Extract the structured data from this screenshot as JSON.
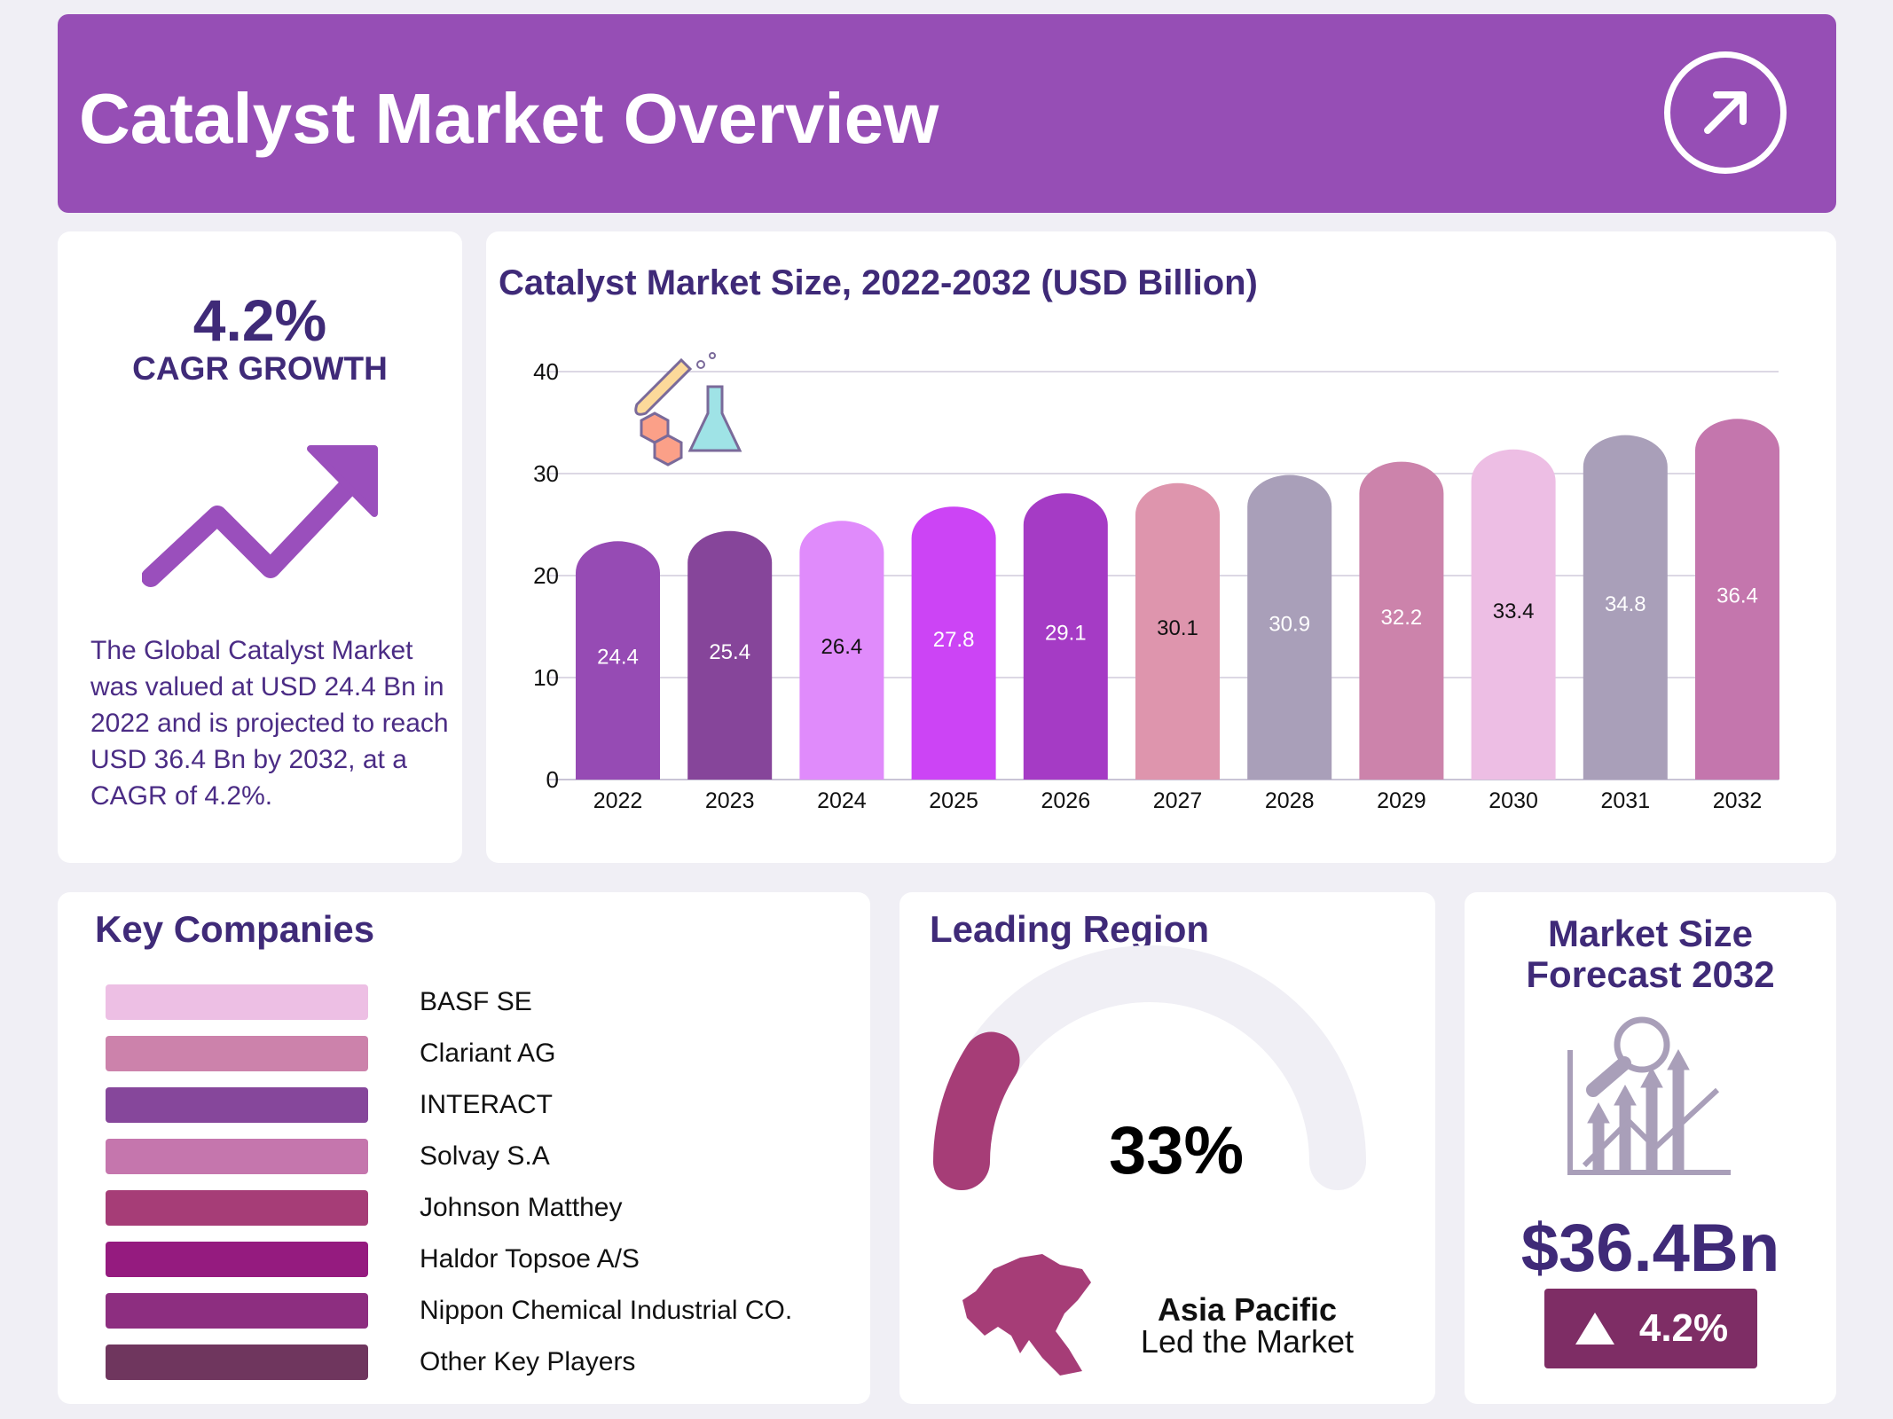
{
  "header": {
    "title": "Catalyst Market Overview",
    "icon": "arrow-up-right-circle-icon"
  },
  "cagr": {
    "value": "4.2%",
    "label": "CAGR GROWTH",
    "icon": "trend-up-arrow-icon",
    "description": "The Global Catalyst Market was valued at USD 24.4 Bn in 2022 and is projected to reach USD 36.4 Bn by 2032, at a CAGR of 4.2%."
  },
  "chart_data": {
    "type": "bar",
    "title": "Catalyst Market Size, 2022-2032 (USD Billion)",
    "xlabel": "",
    "ylabel": "",
    "ylim": [
      0,
      40
    ],
    "yticks": [
      0,
      10,
      20,
      30,
      40
    ],
    "grid": true,
    "categories": [
      "2022",
      "2023",
      "2024",
      "2025",
      "2026",
      "2027",
      "2028",
      "2029",
      "2030",
      "2031",
      "2032"
    ],
    "values": [
      24.4,
      25.4,
      26.4,
      27.8,
      29.1,
      30.1,
      30.9,
      32.2,
      33.4,
      34.8,
      36.4
    ],
    "colors": [
      "#964BB4",
      "#86459A",
      "#E08BFB",
      "#CC44F5",
      "#A53BC5",
      "#DE95AD",
      "#A99FB9",
      "#CC83AB",
      "#EDBEE4",
      "#A99FB9",
      "#C476AD"
    ],
    "label_colors": [
      "#fff",
      "#fff",
      "#111",
      "#fff",
      "#fff",
      "#111",
      "#fff",
      "#fff",
      "#111",
      "#fff",
      "#fff"
    ]
  },
  "companies": {
    "title": "Key Companies",
    "items": [
      {
        "name": "BASF SE",
        "color": "#EDBFE4"
      },
      {
        "name": "Clariant AG",
        "color": "#CC82AB"
      },
      {
        "name": "INTERACT",
        "color": "#86479B"
      },
      {
        "name": "Solvay S.A",
        "color": "#C576AD"
      },
      {
        "name": "Johnson Matthey",
        "color": "#A63D77"
      },
      {
        "name": "Haldor Topsoe A/S",
        "color": "#951B7F"
      },
      {
        "name": "Nippon Chemical Industrial CO.",
        "color": "#8D2E80"
      },
      {
        "name": "Other Key Players",
        "color": "#6F365E"
      }
    ]
  },
  "region": {
    "title": "Leading Region",
    "share": "33%",
    "share_value": 33,
    "name": "Asia Pacific",
    "caption": "Led the Market",
    "gauge_color": "#A63D77",
    "track_color": "#F0EFF5"
  },
  "forecast": {
    "title_line1": "Market Size",
    "title_line2": "Forecast 2032",
    "value": "$36.4Bn",
    "growth": "4.2%",
    "icon": "chart-magnifier-icon"
  }
}
